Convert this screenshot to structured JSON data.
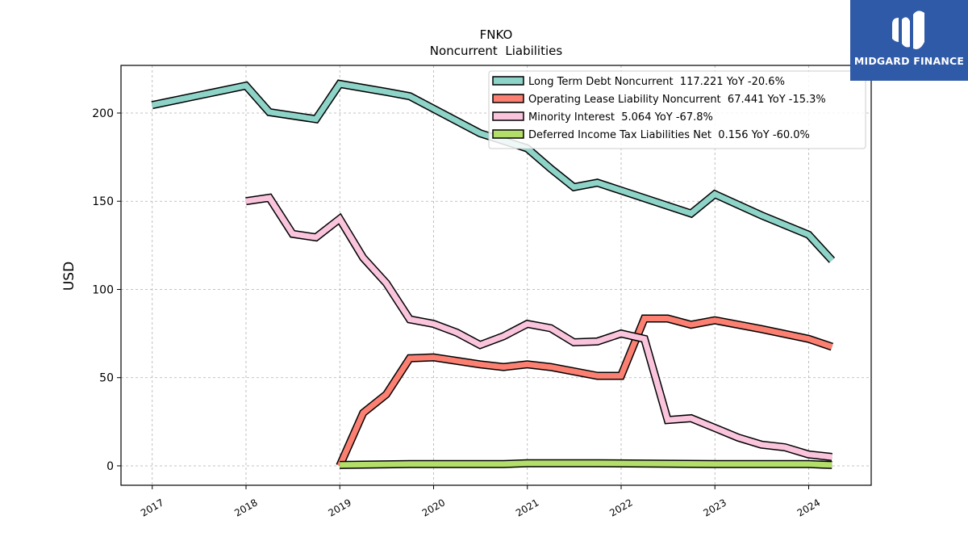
{
  "brand": {
    "name": "MIDGARD FINANCE",
    "bg_color": "#2f5aa8",
    "logo_icon": "stylized-M-logo"
  },
  "chart_data": {
    "type": "line",
    "title": "FNKO",
    "subtitle": "Noncurrent  Liabilities",
    "xlabel": "",
    "ylabel": "USD",
    "xlim": [
      "2016-09-01",
      "2024-09-01"
    ],
    "ylim": [
      -11,
      227
    ],
    "x_ticks": [
      "2017",
      "2018",
      "2019",
      "2020",
      "2021",
      "2022",
      "2023",
      "2024"
    ],
    "y_ticks": [
      0,
      50,
      100,
      150,
      200
    ],
    "grid": true,
    "legend_position": "top-right",
    "series": [
      {
        "name": "Long Term Debt Noncurrent  117.221 YoY -20.6%",
        "color": "#8dd3c7",
        "points": [
          [
            "2016-12-31",
            204.5
          ],
          [
            "2017-12-31",
            215.5
          ],
          [
            "2018-03-31",
            200.5
          ],
          [
            "2018-09-30",
            196.5
          ],
          [
            "2018-12-31",
            216.5
          ],
          [
            "2019-06-30",
            212
          ],
          [
            "2019-09-30",
            209.5
          ],
          [
            "2020-06-30",
            188.5
          ],
          [
            "2020-12-31",
            180
          ],
          [
            "2021-03-31",
            168.5
          ],
          [
            "2021-06-30",
            158
          ],
          [
            "2021-09-30",
            160.5
          ],
          [
            "2022-09-30",
            143
          ],
          [
            "2022-12-31",
            154
          ],
          [
            "2023-06-30",
            142
          ],
          [
            "2023-12-31",
            131
          ],
          [
            "2024-03-31",
            116.5
          ]
        ]
      },
      {
        "name": "Operating Lease Liability Noncurrent  67.441 YoY -15.3%",
        "color": "#fb8072",
        "points": [
          [
            "2018-12-31",
            0
          ],
          [
            "2019-03-31",
            30
          ],
          [
            "2019-06-30",
            40.5
          ],
          [
            "2019-09-30",
            61
          ],
          [
            "2019-12-31",
            61.5
          ],
          [
            "2020-06-30",
            57.5
          ],
          [
            "2020-09-30",
            56
          ],
          [
            "2020-12-31",
            57.5
          ],
          [
            "2021-03-31",
            56
          ],
          [
            "2021-09-30",
            51
          ],
          [
            "2021-12-31",
            51
          ],
          [
            "2022-03-31",
            83.5
          ],
          [
            "2022-06-30",
            83.5
          ],
          [
            "2022-09-30",
            80
          ],
          [
            "2022-12-31",
            82.5
          ],
          [
            "2023-06-30",
            77.5
          ],
          [
            "2023-12-31",
            72
          ],
          [
            "2024-03-31",
            67.5
          ]
        ]
      },
      {
        "name": "Minority Interest  5.064 YoY -67.8%",
        "color": "#f9c4dc",
        "points": [
          [
            "2017-12-31",
            150
          ],
          [
            "2018-03-31",
            152
          ],
          [
            "2018-06-30",
            131.5
          ],
          [
            "2018-09-30",
            129.5
          ],
          [
            "2018-12-31",
            140
          ],
          [
            "2019-03-31",
            118
          ],
          [
            "2019-06-30",
            103.5
          ],
          [
            "2019-09-30",
            83
          ],
          [
            "2019-12-31",
            80.5
          ],
          [
            "2020-03-31",
            75.5
          ],
          [
            "2020-06-30",
            68.5
          ],
          [
            "2020-09-30",
            73.5
          ],
          [
            "2020-12-31",
            80.5
          ],
          [
            "2021-03-31",
            78
          ],
          [
            "2021-06-30",
            70
          ],
          [
            "2021-09-30",
            70.5
          ],
          [
            "2021-12-31",
            75
          ],
          [
            "2022-03-31",
            72
          ],
          [
            "2022-06-30",
            26
          ],
          [
            "2022-09-30",
            27
          ],
          [
            "2022-12-31",
            21.5
          ],
          [
            "2023-03-31",
            16
          ],
          [
            "2023-06-30",
            12
          ],
          [
            "2023-09-30",
            10.5
          ],
          [
            "2023-12-31",
            6.5
          ],
          [
            "2024-03-31",
            5
          ]
        ]
      },
      {
        "name": "Deferred Income Tax Liabilities Net  0.156 YoY -60.0%",
        "color": "#b3de69",
        "points": [
          [
            "2018-12-31",
            0.5
          ],
          [
            "2019-09-30",
            1
          ],
          [
            "2020-09-30",
            1
          ],
          [
            "2020-12-31",
            1.5
          ],
          [
            "2021-09-30",
            1.5
          ],
          [
            "2022-12-31",
            1
          ],
          [
            "2023-12-31",
            1
          ],
          [
            "2024-03-31",
            0.5
          ]
        ]
      }
    ]
  }
}
